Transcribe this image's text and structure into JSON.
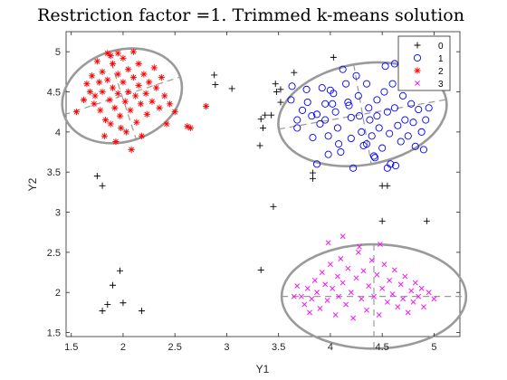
{
  "chart_data": {
    "type": "scatter",
    "title": "Restriction factor =1.  Trimmed k-means solution",
    "xlabel": "Y1",
    "ylabel": "Y2",
    "xlim": [
      1.45,
      5.25
    ],
    "ylim": [
      1.45,
      5.25
    ],
    "xticks": [
      1.5,
      2,
      2.5,
      3,
      3.5,
      4,
      4.5,
      5
    ],
    "yticks": [
      1.5,
      2,
      2.5,
      3,
      3.5,
      4,
      4.5,
      5
    ],
    "grid": false,
    "legend_position": "top-right",
    "series": [
      {
        "name": "0",
        "marker": "plus",
        "color": "#000000",
        "points": [
          [
            1.75,
            3.45
          ],
          [
            1.8,
            3.33
          ],
          [
            1.8,
            1.77
          ],
          [
            1.85,
            1.85
          ],
          [
            1.9,
            2.09
          ],
          [
            1.97,
            2.27
          ],
          [
            2.0,
            1.87
          ],
          [
            2.18,
            1.77
          ],
          [
            2.88,
            4.71
          ],
          [
            2.89,
            4.59
          ],
          [
            3.05,
            4.54
          ],
          [
            3.32,
            3.83
          ],
          [
            3.33,
            4.16
          ],
          [
            3.35,
            4.05
          ],
          [
            3.37,
            4.21
          ],
          [
            3.43,
            4.21
          ],
          [
            3.48,
            4.5
          ],
          [
            3.47,
            4.6
          ],
          [
            3.52,
            4.53
          ],
          [
            3.52,
            4.37
          ],
          [
            3.45,
            3.07
          ],
          [
            3.33,
            2.28
          ],
          [
            3.65,
            4.74
          ],
          [
            3.83,
            3.42
          ],
          [
            3.83,
            3.49
          ],
          [
            4.03,
            4.93
          ],
          [
            4.5,
            3.33
          ],
          [
            4.55,
            3.33
          ],
          [
            4.5,
            2.89
          ],
          [
            4.93,
            2.89
          ]
        ]
      },
      {
        "name": "1",
        "marker": "circle",
        "color": "#0000ff",
        "points": [
          [
            3.63,
            4.57
          ],
          [
            3.62,
            4.4
          ],
          [
            3.73,
            4.27
          ],
          [
            3.68,
            4.05
          ],
          [
            3.77,
            4.53
          ],
          [
            3.68,
            4.15
          ],
          [
            3.82,
            4.2
          ],
          [
            3.83,
            3.93
          ],
          [
            3.87,
            3.6
          ],
          [
            3.9,
            4.1
          ],
          [
            3.92,
            4.55
          ],
          [
            3.95,
            4.35
          ],
          [
            3.95,
            4.15
          ],
          [
            3.98,
            3.95
          ],
          [
            3.98,
            3.72
          ],
          [
            4.0,
            4.52
          ],
          [
            4.02,
            4.35
          ],
          [
            4.05,
            4.25
          ],
          [
            4.07,
            4.05
          ],
          [
            4.08,
            3.85
          ],
          [
            4.1,
            3.75
          ],
          [
            4.12,
            4.78
          ],
          [
            4.15,
            4.6
          ],
          [
            4.17,
            4.37
          ],
          [
            4.2,
            4.18
          ],
          [
            4.2,
            3.92
          ],
          [
            4.22,
            3.55
          ],
          [
            4.25,
            4.7
          ],
          [
            4.27,
            4.45
          ],
          [
            4.28,
            4.2
          ],
          [
            4.3,
            4.0
          ],
          [
            4.32,
            3.83
          ],
          [
            4.35,
            4.6
          ],
          [
            4.37,
            4.3
          ],
          [
            4.38,
            4.15
          ],
          [
            4.4,
            3.95
          ],
          [
            4.42,
            3.7
          ],
          [
            4.45,
            4.4
          ],
          [
            4.45,
            4.2
          ],
          [
            4.47,
            4.05
          ],
          [
            4.5,
            3.8
          ],
          [
            4.52,
            4.5
          ],
          [
            4.55,
            4.25
          ],
          [
            4.57,
            3.98
          ],
          [
            4.58,
            3.6
          ],
          [
            4.6,
            4.6
          ],
          [
            4.62,
            4.3
          ],
          [
            4.65,
            4.08
          ],
          [
            4.68,
            3.88
          ],
          [
            4.7,
            4.45
          ],
          [
            4.72,
            4.15
          ],
          [
            4.75,
            3.95
          ],
          [
            4.78,
            4.35
          ],
          [
            4.8,
            4.12
          ],
          [
            4.82,
            3.82
          ],
          [
            4.85,
            4.28
          ],
          [
            4.88,
            4.0
          ],
          [
            4.9,
            3.78
          ],
          [
            4.92,
            4.15
          ],
          [
            4.95,
            4.3
          ],
          [
            4.53,
            4.82
          ],
          [
            4.62,
            4.85
          ],
          [
            4.55,
            3.55
          ],
          [
            4.63,
            3.58
          ],
          [
            4.43,
            3.68
          ],
          [
            4.35,
            3.85
          ],
          [
            3.78,
            4.37
          ],
          [
            3.87,
            4.22
          ],
          [
            4.03,
            4.48
          ],
          [
            4.18,
            4.33
          ]
        ]
      },
      {
        "name": "2",
        "marker": "asterisk",
        "color": "#ff0000",
        "points": [
          [
            1.55,
            4.25
          ],
          [
            1.62,
            4.4
          ],
          [
            1.65,
            4.6
          ],
          [
            1.68,
            4.5
          ],
          [
            1.7,
            4.7
          ],
          [
            1.72,
            4.35
          ],
          [
            1.73,
            4.45
          ],
          [
            1.75,
            4.88
          ],
          [
            1.77,
            4.62
          ],
          [
            1.78,
            4.27
          ],
          [
            1.8,
            4.75
          ],
          [
            1.8,
            4.5
          ],
          [
            1.82,
            3.95
          ],
          [
            1.83,
            4.15
          ],
          [
            1.85,
            4.98
          ],
          [
            1.85,
            4.65
          ],
          [
            1.87,
            4.4
          ],
          [
            1.88,
            4.1
          ],
          [
            1.9,
            4.85
          ],
          [
            1.9,
            4.55
          ],
          [
            1.92,
            4.3
          ],
          [
            1.93,
            3.88
          ],
          [
            1.95,
            4.72
          ],
          [
            1.95,
            4.48
          ],
          [
            1.97,
            4.2
          ],
          [
            1.98,
            4.05
          ],
          [
            2.0,
            4.92
          ],
          [
            2.0,
            4.62
          ],
          [
            2.02,
            4.38
          ],
          [
            2.03,
            4.0
          ],
          [
            2.05,
            4.78
          ],
          [
            2.05,
            4.5
          ],
          [
            2.07,
            4.27
          ],
          [
            2.08,
            3.78
          ],
          [
            2.1,
            4.68
          ],
          [
            2.12,
            4.45
          ],
          [
            2.13,
            4.12
          ],
          [
            2.15,
            4.85
          ],
          [
            2.15,
            4.58
          ],
          [
            2.17,
            4.35
          ],
          [
            2.18,
            3.95
          ],
          [
            2.2,
            4.72
          ],
          [
            2.22,
            4.48
          ],
          [
            2.23,
            4.22
          ],
          [
            2.25,
            4.62
          ],
          [
            2.28,
            4.38
          ],
          [
            2.3,
            4.8
          ],
          [
            2.32,
            4.55
          ],
          [
            2.35,
            4.3
          ],
          [
            2.37,
            4.68
          ],
          [
            2.4,
            4.45
          ],
          [
            2.42,
            4.1
          ],
          [
            2.45,
            4.35
          ],
          [
            2.5,
            4.25
          ],
          [
            2.62,
            4.07
          ],
          [
            2.65,
            4.05
          ],
          [
            2.8,
            4.32
          ],
          [
            1.88,
            4.95
          ],
          [
            1.95,
            4.98
          ],
          [
            2.1,
            5.0
          ]
        ]
      },
      {
        "name": "3",
        "marker": "cross",
        "color": "#ff00ff",
        "points": [
          [
            3.72,
            1.95
          ],
          [
            3.75,
            1.85
          ],
          [
            3.78,
            2.05
          ],
          [
            3.8,
            1.75
          ],
          [
            3.82,
            1.92
          ],
          [
            3.85,
            2.15
          ],
          [
            3.87,
            2.0
          ],
          [
            3.9,
            1.8
          ],
          [
            3.92,
            2.25
          ],
          [
            3.95,
            2.1
          ],
          [
            3.97,
            1.9
          ],
          [
            4.0,
            2.35
          ],
          [
            4.02,
            2.05
          ],
          [
            4.05,
            1.72
          ],
          [
            4.07,
            2.2
          ],
          [
            4.08,
            1.95
          ],
          [
            4.1,
            2.42
          ],
          [
            4.12,
            2.12
          ],
          [
            4.15,
            1.85
          ],
          [
            4.17,
            2.3
          ],
          [
            4.2,
            2.0
          ],
          [
            4.22,
            1.68
          ],
          [
            4.25,
            2.18
          ],
          [
            4.27,
            2.5
          ],
          [
            4.3,
            1.92
          ],
          [
            4.32,
            2.27
          ],
          [
            4.35,
            1.78
          ],
          [
            4.37,
            2.08
          ],
          [
            4.4,
            2.4
          ],
          [
            4.42,
            1.95
          ],
          [
            4.45,
            2.22
          ],
          [
            4.47,
            1.72
          ],
          [
            4.5,
            2.05
          ],
          [
            4.52,
            2.35
          ],
          [
            4.55,
            1.88
          ],
          [
            4.57,
            2.15
          ],
          [
            4.6,
            1.98
          ],
          [
            4.62,
            2.28
          ],
          [
            4.65,
            1.82
          ],
          [
            4.68,
            2.1
          ],
          [
            4.7,
            1.92
          ],
          [
            4.72,
            2.2
          ],
          [
            4.75,
            1.75
          ],
          [
            4.78,
            2.02
          ],
          [
            4.8,
            1.88
          ],
          [
            4.82,
            2.12
          ],
          [
            4.85,
            1.95
          ],
          [
            4.88,
            2.05
          ],
          [
            4.9,
            1.82
          ],
          [
            4.95,
            2.0
          ],
          [
            5.0,
            1.92
          ],
          [
            3.98,
            2.62
          ],
          [
            4.12,
            2.7
          ],
          [
            4.28,
            2.57
          ],
          [
            4.48,
            2.6
          ],
          [
            3.65,
            1.95
          ],
          [
            3.68,
            2.08
          ]
        ]
      }
    ],
    "ellipses": [
      {
        "series": "1",
        "center": [
          4.31,
          4.22
        ],
        "semi_x": 0.82,
        "semi_y": 0.63,
        "angle_deg": -10
      },
      {
        "series": "2",
        "center": [
          1.99,
          4.45
        ],
        "semi_x": 0.59,
        "semi_y": 0.57,
        "angle_deg": -18
      },
      {
        "series": "3",
        "center": [
          4.42,
          1.95
        ],
        "semi_x": 0.89,
        "semi_y": 0.65,
        "angle_deg": 0
      }
    ]
  }
}
